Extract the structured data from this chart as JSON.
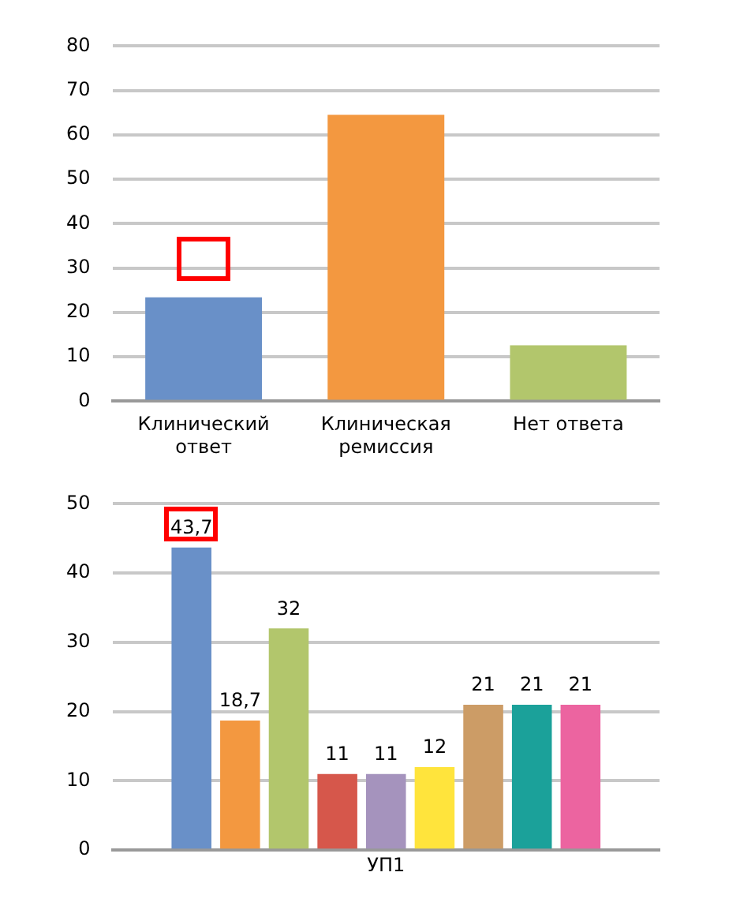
{
  "chart_data": [
    {
      "type": "bar",
      "categories": [
        "Клинический ответ",
        "Клиническая ремиссия",
        "Нет ответа"
      ],
      "values": [
        23.4,
        64.5,
        12.6
      ],
      "colors": [
        "#6990c8",
        "#f39840",
        "#b2c66c"
      ],
      "ylim": [
        0,
        80
      ],
      "yticks": [
        0,
        10,
        20,
        30,
        40,
        50,
        60,
        70,
        80
      ],
      "grid": "y",
      "legend": false
    },
    {
      "type": "bar",
      "categories": [
        "УП1"
      ],
      "series": [
        {
          "color": "#6990c8",
          "values": [
            43.7
          ],
          "value_labels": [
            "43,7"
          ]
        },
        {
          "color": "#f39840",
          "values": [
            18.7
          ],
          "value_labels": [
            "18,7"
          ]
        },
        {
          "color": "#b2c66c",
          "values": [
            32
          ],
          "value_labels": [
            "32"
          ]
        },
        {
          "color": "#d6574b",
          "values": [
            11
          ],
          "value_labels": [
            "11"
          ]
        },
        {
          "color": "#a593bd",
          "values": [
            11
          ],
          "value_labels": [
            "11"
          ]
        },
        {
          "color": "#ffe43c",
          "values": [
            12
          ],
          "value_labels": [
            "12"
          ]
        },
        {
          "color": "#cc9c66",
          "values": [
            21
          ],
          "value_labels": [
            "21"
          ]
        },
        {
          "color": "#1ba19a",
          "values": [
            21
          ],
          "value_labels": [
            "21"
          ]
        },
        {
          "color": "#ec64a0",
          "values": [
            21
          ],
          "value_labels": [
            "21"
          ]
        }
      ],
      "ylim": [
        0,
        50
      ],
      "yticks": [
        0,
        10,
        20,
        30,
        40,
        50
      ],
      "grid": "y",
      "legend": false
    }
  ]
}
